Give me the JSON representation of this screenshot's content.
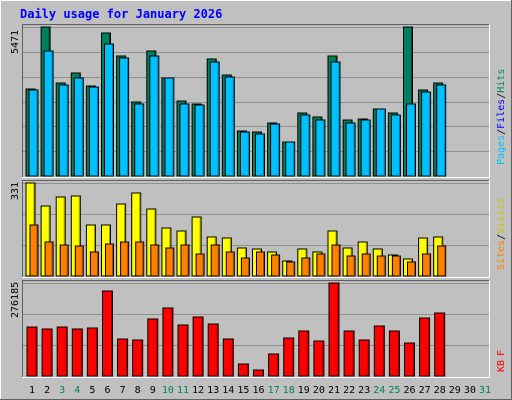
{
  "chart_data": [
    {
      "type": "bar",
      "title": "Daily usage for January 2026",
      "ymax_label": "5471",
      "ylabel_parts": [
        "Pages",
        "/",
        "Files",
        "/",
        "Hits"
      ],
      "categories": [
        "1",
        "2",
        "3",
        "4",
        "5",
        "6",
        "7",
        "8",
        "9",
        "10",
        "11",
        "12",
        "13",
        "14",
        "15",
        "16",
        "17",
        "18",
        "19",
        "20",
        "21",
        "22",
        "23",
        "24",
        "25",
        "26",
        "27",
        "28",
        "29",
        "30",
        "31"
      ],
      "weekend_days": [
        "3",
        "4",
        "10",
        "11",
        "17",
        "18",
        "24",
        "25",
        "31"
      ],
      "ylim": [
        0,
        5471
      ],
      "series": [
        {
          "name": "Hits",
          "values": [
            3200,
            5471,
            3400,
            3800,
            3300,
            5250,
            4400,
            2700,
            4600,
            3600,
            2750,
            2650,
            4300,
            3700,
            1650,
            1600,
            1950,
            1250,
            2300,
            2150,
            4400,
            2050,
            2100,
            2450,
            2300,
            5471,
            3150,
            3400,
            null,
            null,
            null
          ]
        },
        {
          "name": "Files",
          "values": [
            3150,
            4600,
            3350,
            3600,
            3250,
            4850,
            4350,
            2650,
            4400,
            3600,
            2650,
            2600,
            4200,
            3650,
            1600,
            1550,
            1900,
            1250,
            2250,
            2050,
            4200,
            1950,
            2050,
            2450,
            2250,
            2650,
            3100,
            3350,
            null,
            null,
            null
          ]
        },
        {
          "name": "Pages",
          "values": [
            null,
            null,
            null,
            null,
            null,
            null,
            null,
            null,
            null,
            null,
            null,
            null,
            null,
            null,
            null,
            null,
            null,
            null,
            null,
            null,
            null,
            null,
            null,
            null,
            null,
            null,
            null,
            null,
            null,
            null,
            null
          ]
        }
      ]
    },
    {
      "type": "bar",
      "ymax_label": "331",
      "ylabel_parts": [
        "Sites",
        "/",
        "Visits"
      ],
      "categories": [
        "1",
        "2",
        "3",
        "4",
        "5",
        "6",
        "7",
        "8",
        "9",
        "10",
        "11",
        "12",
        "13",
        "14",
        "15",
        "16",
        "17",
        "18",
        "19",
        "20",
        "21",
        "22",
        "23",
        "24",
        "25",
        "26",
        "27",
        "28",
        "29",
        "30",
        "31"
      ],
      "ylim": [
        0,
        331
      ],
      "series": [
        {
          "name": "Visits",
          "values": [
            331,
            250,
            280,
            285,
            180,
            180,
            255,
            295,
            240,
            170,
            160,
            210,
            140,
            135,
            100,
            95,
            85,
            55,
            95,
            85,
            160,
            100,
            120,
            95,
            75,
            60,
            135,
            140,
            null,
            null,
            null
          ]
        },
        {
          "name": "Sites",
          "values": [
            180,
            120,
            110,
            105,
            85,
            115,
            120,
            120,
            110,
            100,
            110,
            80,
            110,
            85,
            65,
            85,
            75,
            50,
            65,
            80,
            110,
            70,
            80,
            70,
            70,
            50,
            80,
            105,
            null,
            null,
            null
          ]
        }
      ]
    },
    {
      "type": "bar",
      "ymax_label": "276185",
      "ylabel_parts": [
        "KB",
        "F"
      ],
      "categories": [
        "1",
        "2",
        "3",
        "4",
        "5",
        "6",
        "7",
        "8",
        "9",
        "10",
        "11",
        "12",
        "13",
        "14",
        "15",
        "16",
        "17",
        "18",
        "19",
        "20",
        "21",
        "22",
        "23",
        "24",
        "25",
        "26",
        "27",
        "28",
        "29",
        "30",
        "31"
      ],
      "ylim": [
        0,
        276185
      ],
      "series": [
        {
          "name": "KB F",
          "values": [
            145000,
            140000,
            145000,
            140000,
            142000,
            252000,
            110000,
            108000,
            170000,
            203000,
            152000,
            175000,
            155000,
            110000,
            37000,
            17000,
            65000,
            113000,
            135000,
            105000,
            276185,
            135000,
            107000,
            148000,
            135000,
            99000,
            173000,
            187000,
            null,
            null,
            null
          ]
        }
      ]
    }
  ],
  "colors": {
    "hits": "#00805c",
    "files": "#00c0ff",
    "pages": "#0000ff",
    "visits": "#ffff00",
    "sites": "#ff8000",
    "kbytes": "#ff0000",
    "plot_bg": "#c0c0c0",
    "frame_bg": "#c0c0c0",
    "weekday_label": "#000000",
    "weekend_label": "#00805c",
    "title": "#0000ff"
  }
}
